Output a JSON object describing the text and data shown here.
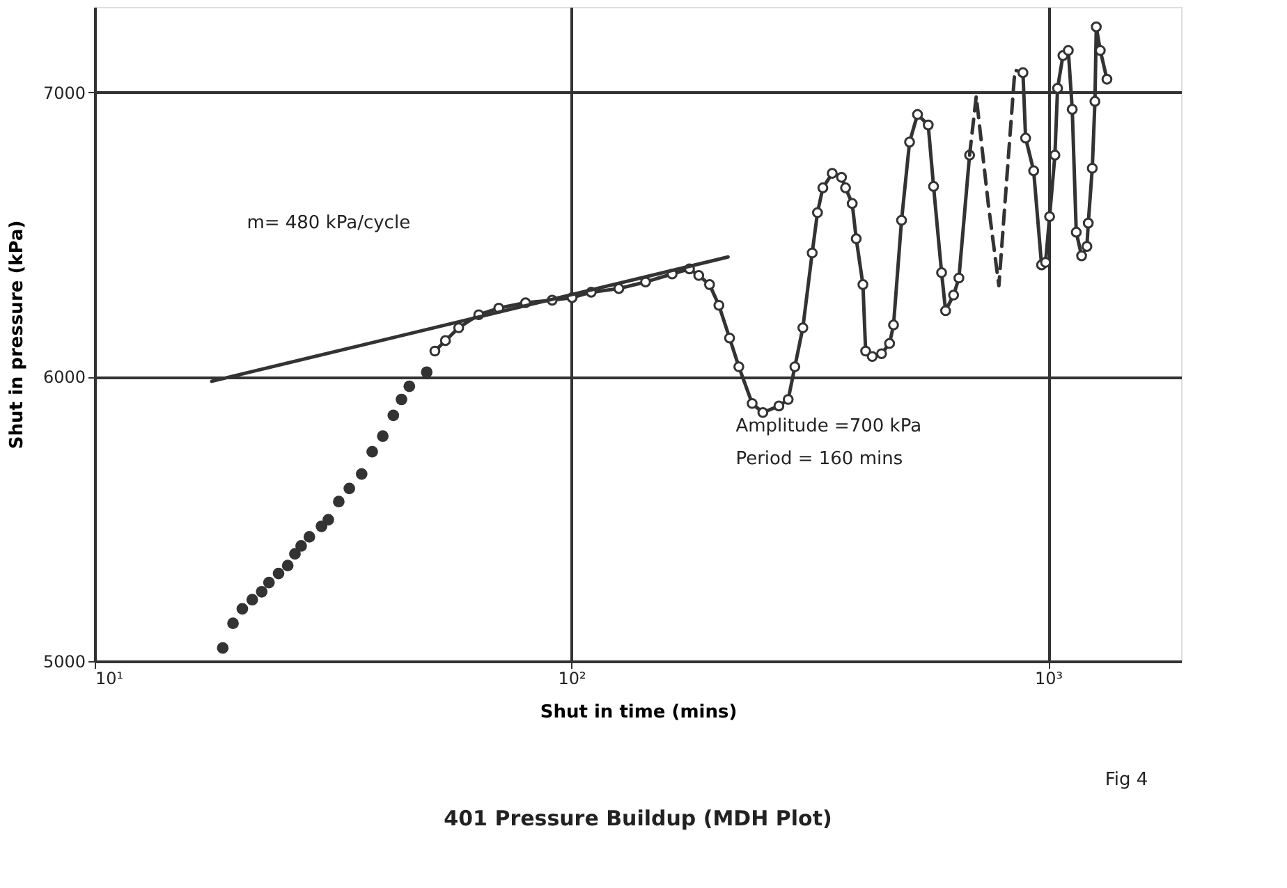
{
  "chart_data": {
    "type": "line",
    "title": "401 Pressure Buildup (MDH Plot)",
    "xlabel": "Shut in time (mins)",
    "ylabel": "Shut in pressure (kPa)",
    "log": "x",
    "xlim": [
      10,
      1900
    ],
    "ylim": [
      5000,
      7300
    ],
    "xticks": [
      {
        "value": 10,
        "label": "10¹"
      },
      {
        "value": 100,
        "label": "10²"
      },
      {
        "value": 1000,
        "label": "10³"
      }
    ],
    "yticks": [
      5000,
      6000,
      7000
    ],
    "grid": true,
    "annotations": [
      "m= 480 kPa/cycle",
      "Amplitude =700 kPa",
      "Period = 160 mins",
      "Fig 4"
    ],
    "series": [
      {
        "type": "scatter",
        "marker": "circle",
        "color": "#333333",
        "x": [
          18.56,
          19.5,
          20.4,
          21.4,
          22.4,
          23.2,
          24.3,
          25.4,
          26.3,
          27.1,
          28.2,
          29.9,
          30.9,
          32.5,
          34.2,
          36.3,
          38.2,
          40.2,
          42.3,
          44.0,
          45.7,
          49.7
        ],
        "values": [
          5046,
          5133,
          5184,
          5216,
          5244,
          5276,
          5308,
          5336,
          5377,
          5405,
          5437,
          5474,
          5497,
          5561,
          5607,
          5658,
          5736,
          5791,
          5864,
          5920,
          5966,
          6016
        ]
      },
      {
        "marker": "circle",
        "line_style": "solid",
        "color": "#333333",
        "x": [
          51.7,
          54.4,
          58.0,
          63.9,
          70.4,
          80.1,
          91.1,
          100.3,
          110,
          125.7,
          143,
          162.6,
          176.8,
          184.9,
          194.8,
          203.8,
          214.6,
          224.4,
          239.3,
          252.0,
          272.3,
          284.8,
          294.1,
          305.7,
          319.8,
          328.1,
          336.7,
          352.3,
          368.5,
          375.7,
          388.0,
          395.6,
          408.6,
          414.0,
          427.4,
          447.1,
          464.7,
          473.7,
          492.4,
          511.8,
          531.9,
          560.1,
          574.7,
          597.4,
          609.1,
          633.1,
          649.6,
          683.9
        ],
        "values": [
          6090,
          6127,
          6172,
          6218,
          6241,
          6260,
          6269,
          6278,
          6297,
          6310,
          6333,
          6361,
          6379,
          6356,
          6324,
          6251,
          6136,
          6035,
          5906,
          5874,
          5897,
          5920,
          6035,
          6172,
          6435,
          6577,
          6664,
          6715,
          6701,
          6664,
          6609,
          6485,
          6324,
          6090,
          6071,
          6081,
          6117,
          6182,
          6550,
          6825,
          6922,
          6885,
          6669,
          6366,
          6232,
          6287,
          6347,
          6779
        ]
      },
      {
        "marker": "none",
        "line_style": "dashed",
        "color": "#333333",
        "x": [
          683.9,
          706.3,
          748.4,
          787.9,
          818.9,
          851.2,
          885.0
        ],
        "values": [
          6779,
          6986,
          6609,
          6320,
          6701,
          7078,
          7069
        ]
      },
      {
        "marker": "circle",
        "line_style": "solid",
        "color": "#333333",
        "x": [
          885.0,
          896.5,
          932.0,
          968.3,
          987.2,
          1006.5,
          1032.8,
          1046.1,
          1073.6,
          1101.7,
          1122.9,
          1144.9,
          1174.8,
          1205.4,
          1213.3,
          1237.0,
          1253.0,
          1261.1,
          1285.7,
          1327.9
        ],
        "values": [
          7069,
          6839,
          6724,
          6393,
          6402,
          6563,
          6779,
          7014,
          7129,
          7147,
          6940,
          6508,
          6425,
          6458,
          6540,
          6733,
          6968,
          7230,
          7147,
          7046
        ]
      },
      {
        "marker": "none",
        "line_style": "solid",
        "color": "#333333",
        "x": [
          17.6,
          213
        ],
        "values": [
          5984,
          6421
        ]
      }
    ]
  }
}
